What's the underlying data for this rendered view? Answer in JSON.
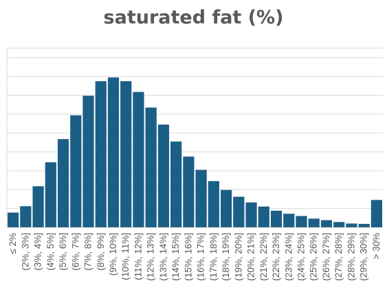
{
  "chart_data": {
    "type": "bar",
    "title": "saturated fat (%)",
    "xlabel": "",
    "ylabel": "",
    "ylim": [
      0,
      9.5
    ],
    "grid": true,
    "bar_color": "#1c5f86",
    "grid_color": "#d9d9d9",
    "categories": [
      "≤ 2%",
      "(2%, 3%]",
      "(3%, 4%]",
      "(4%, 5%]",
      "(5%, 6%]",
      "(6%, 7%]",
      "(7%, 8%]",
      "(8%, 9%]",
      "(9%, 10%]",
      "(10%, 11%]",
      "(11%, 12%]",
      "(12%, 13%]",
      "(13%, 14%]",
      "(14%, 15%]",
      "(15%, 16%]",
      "(16%, 17%]",
      "(17%, 18%]",
      "(18%, 19%]",
      "(19%, 20%]",
      "(20%, 21%]",
      "(21%, 22%]",
      "(22%, 23%]",
      "(23%, 24%]",
      "(24%, 25%]",
      "(25%, 26%]",
      "(26%, 27%]",
      "(27%, 28%]",
      "(28%, 29%]",
      "(29%, 30%]",
      "> 30%"
    ],
    "values": [
      0.78,
      1.12,
      2.18,
      3.45,
      4.68,
      5.94,
      6.98,
      7.75,
      7.95,
      7.75,
      7.18,
      6.35,
      5.45,
      4.55,
      3.75,
      3.05,
      2.45,
      1.98,
      1.62,
      1.32,
      1.1,
      0.88,
      0.72,
      0.6,
      0.46,
      0.38,
      0.28,
      0.2,
      0.18,
      1.45
    ]
  }
}
